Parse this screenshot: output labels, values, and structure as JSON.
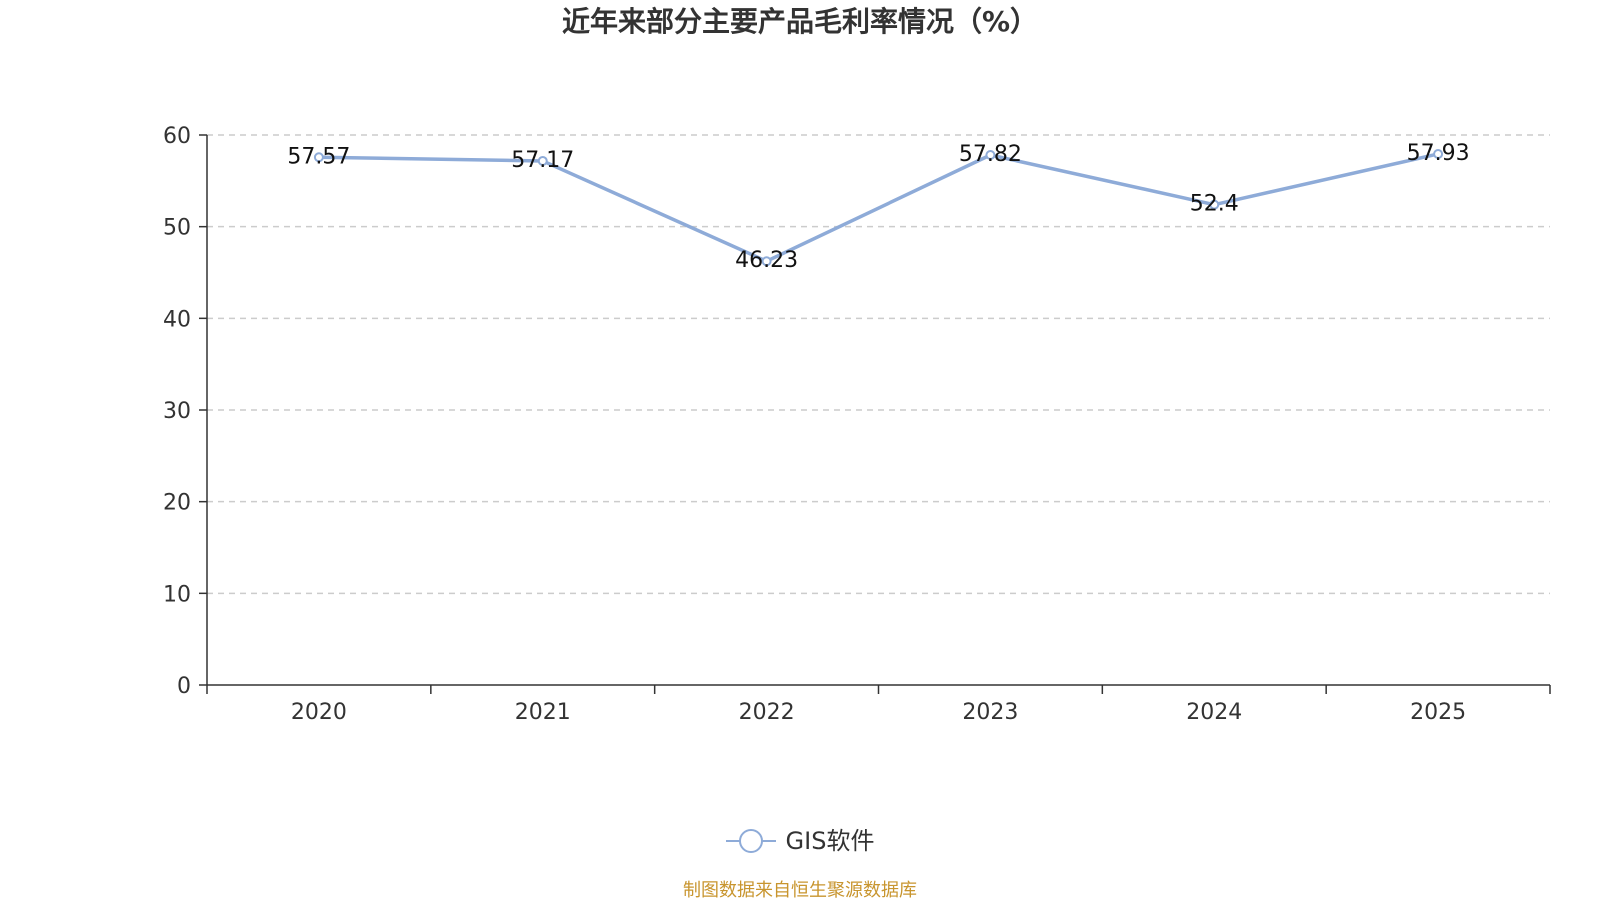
{
  "chart_data": {
    "type": "line",
    "title": "近年来部分主要产品毛利率情况（%）",
    "categories": [
      "2020",
      "2021",
      "2022",
      "2023",
      "2024",
      "2025"
    ],
    "series": [
      {
        "name": "GIS软件",
        "values": [
          57.57,
          57.17,
          46.23,
          57.82,
          52.4,
          57.93
        ],
        "labels": [
          "57.57",
          "57.17",
          "46.23",
          "57.82",
          "52.4",
          "57.93"
        ],
        "color": "#8eabd8"
      }
    ],
    "ylim": [
      0,
      60
    ],
    "yticks": [
      "0",
      "10",
      "20",
      "30",
      "40",
      "50",
      "60"
    ],
    "grid": true,
    "grid_style": "dashed",
    "legend_position": "bottom-center",
    "xlabel": "",
    "ylabel": ""
  },
  "source_note": "制图数据来自恒生聚源数据库",
  "colors": {
    "series_line": "#8eabd8",
    "axis": "#333333",
    "grid": "#cccccc",
    "source_note": "#c8952e"
  }
}
